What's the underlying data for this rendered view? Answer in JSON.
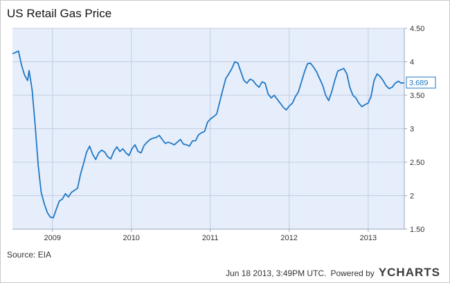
{
  "chart_data": {
    "type": "line",
    "title": "US Retail Gas Price",
    "xlabel": "",
    "ylabel": "",
    "x_ticks": [
      "2009",
      "2010",
      "2011",
      "2012",
      "2013"
    ],
    "y_ticks": [
      "1.50",
      "2",
      "2.50",
      "3",
      "3.50",
      "4",
      "4.50"
    ],
    "ylim": [
      1.5,
      4.5
    ],
    "grid": true,
    "last_value_label": "3.689",
    "series": [
      {
        "name": "",
        "color": "#1f77c4",
        "x": [
          "2008-06-30",
          "2008-07-14",
          "2008-07-28",
          "2008-08-11",
          "2008-08-25",
          "2008-09-08",
          "2008-09-15",
          "2008-09-29",
          "2008-10-13",
          "2008-10-27",
          "2008-11-10",
          "2008-11-24",
          "2008-12-08",
          "2008-12-22",
          "2009-01-05",
          "2009-01-19",
          "2009-02-02",
          "2009-02-16",
          "2009-03-02",
          "2009-03-16",
          "2009-03-30",
          "2009-04-13",
          "2009-04-27",
          "2009-05-11",
          "2009-05-25",
          "2009-06-08",
          "2009-06-22",
          "2009-07-06",
          "2009-07-20",
          "2009-08-03",
          "2009-08-17",
          "2009-08-31",
          "2009-09-14",
          "2009-09-28",
          "2009-10-12",
          "2009-10-26",
          "2009-11-09",
          "2009-11-23",
          "2009-12-07",
          "2009-12-21",
          "2010-01-04",
          "2010-01-18",
          "2010-02-01",
          "2010-02-15",
          "2010-03-01",
          "2010-03-15",
          "2010-03-29",
          "2010-04-12",
          "2010-04-26",
          "2010-05-10",
          "2010-05-24",
          "2010-06-07",
          "2010-06-21",
          "2010-07-05",
          "2010-07-19",
          "2010-08-02",
          "2010-08-16",
          "2010-08-30",
          "2010-09-13",
          "2010-09-27",
          "2010-10-11",
          "2010-10-25",
          "2010-11-08",
          "2010-11-22",
          "2010-12-06",
          "2010-12-20",
          "2011-01-03",
          "2011-01-17",
          "2011-01-31",
          "2011-02-14",
          "2011-02-28",
          "2011-03-14",
          "2011-03-28",
          "2011-04-11",
          "2011-04-25",
          "2011-05-09",
          "2011-05-23",
          "2011-06-06",
          "2011-06-20",
          "2011-07-04",
          "2011-07-18",
          "2011-08-01",
          "2011-08-15",
          "2011-08-29",
          "2011-09-12",
          "2011-09-26",
          "2011-10-10",
          "2011-10-24",
          "2011-11-07",
          "2011-11-21",
          "2011-12-05",
          "2011-12-19",
          "2012-01-02",
          "2012-01-16",
          "2012-01-30",
          "2012-02-13",
          "2012-02-27",
          "2012-03-12",
          "2012-03-26",
          "2012-04-09",
          "2012-04-23",
          "2012-05-07",
          "2012-05-21",
          "2012-06-04",
          "2012-06-18",
          "2012-07-02",
          "2012-07-16",
          "2012-07-30",
          "2012-08-13",
          "2012-08-27",
          "2012-09-10",
          "2012-09-24",
          "2012-10-08",
          "2012-10-22",
          "2012-11-05",
          "2012-11-19",
          "2012-12-03",
          "2012-12-17",
          "2012-12-31",
          "2013-01-14",
          "2013-01-28",
          "2013-02-11",
          "2013-02-25",
          "2013-03-11",
          "2013-03-25",
          "2013-04-08",
          "2013-04-22",
          "2013-05-06",
          "2013-05-20",
          "2013-06-03",
          "2013-06-17"
        ],
        "y": [
          4.12,
          4.14,
          4.16,
          3.95,
          3.8,
          3.72,
          3.87,
          3.58,
          3.05,
          2.45,
          2.05,
          1.88,
          1.75,
          1.68,
          1.67,
          1.8,
          1.92,
          1.95,
          2.03,
          1.98,
          2.05,
          2.08,
          2.11,
          2.32,
          2.48,
          2.65,
          2.74,
          2.62,
          2.54,
          2.64,
          2.68,
          2.65,
          2.58,
          2.55,
          2.66,
          2.73,
          2.66,
          2.7,
          2.64,
          2.6,
          2.7,
          2.76,
          2.66,
          2.64,
          2.75,
          2.8,
          2.84,
          2.86,
          2.87,
          2.9,
          2.84,
          2.78,
          2.8,
          2.78,
          2.76,
          2.8,
          2.84,
          2.77,
          2.76,
          2.74,
          2.82,
          2.82,
          2.91,
          2.94,
          2.96,
          3.1,
          3.15,
          3.18,
          3.22,
          3.4,
          3.58,
          3.75,
          3.82,
          3.9,
          4.0,
          3.98,
          3.85,
          3.72,
          3.68,
          3.74,
          3.72,
          3.66,
          3.62,
          3.7,
          3.68,
          3.52,
          3.46,
          3.5,
          3.44,
          3.38,
          3.32,
          3.28,
          3.34,
          3.38,
          3.48,
          3.55,
          3.7,
          3.85,
          3.97,
          3.98,
          3.92,
          3.85,
          3.75,
          3.65,
          3.5,
          3.42,
          3.55,
          3.72,
          3.86,
          3.88,
          3.9,
          3.82,
          3.62,
          3.5,
          3.46,
          3.38,
          3.33,
          3.36,
          3.38,
          3.48,
          3.72,
          3.82,
          3.78,
          3.72,
          3.64,
          3.6,
          3.62,
          3.68,
          3.71,
          3.68,
          3.689
        ]
      }
    ]
  },
  "footer": {
    "source": "Source: EIA",
    "timestamp": "Jun 18 2013, 3:49PM UTC.",
    "powered_by": "Powered by",
    "brand_y": "Y",
    "brand_rest": "CHARTS"
  }
}
